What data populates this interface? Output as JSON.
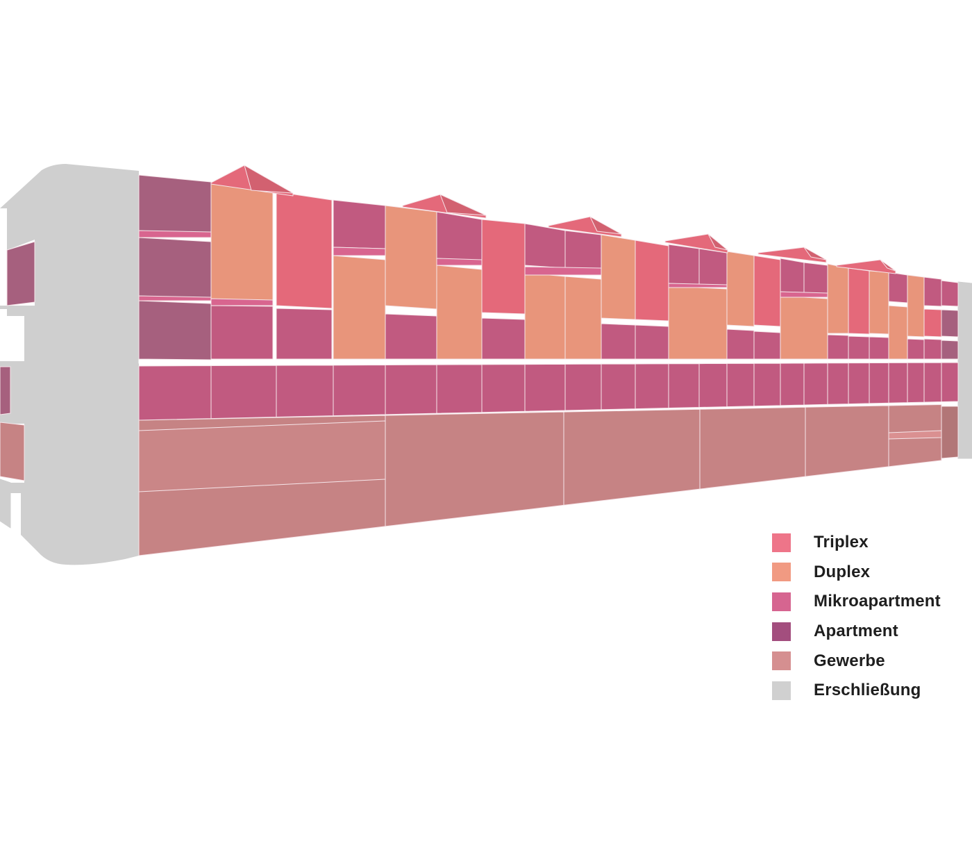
{
  "colors": {
    "triplex": "#e4697a",
    "duplex": "#e8957b",
    "mikro": "#c15a80",
    "apartment": "#a6607e",
    "gewerbe": "#c68384",
    "erschliessung": "#cfcfcf"
  },
  "legend": {
    "items": [
      {
        "key": "triplex",
        "label": "Triplex",
        "color": "#ee7589"
      },
      {
        "key": "duplex",
        "label": "Duplex",
        "color": "#f19a82"
      },
      {
        "key": "mikro",
        "label": "Mikroapartment",
        "color": "#d66590"
      },
      {
        "key": "apartment",
        "label": "Apartment",
        "color": "#a34e7e"
      },
      {
        "key": "gewerbe",
        "label": "Gewerbe",
        "color": "#d58f90"
      },
      {
        "key": "erschliessung",
        "label": "Erschließung",
        "color": "#d0d0d0"
      }
    ]
  }
}
